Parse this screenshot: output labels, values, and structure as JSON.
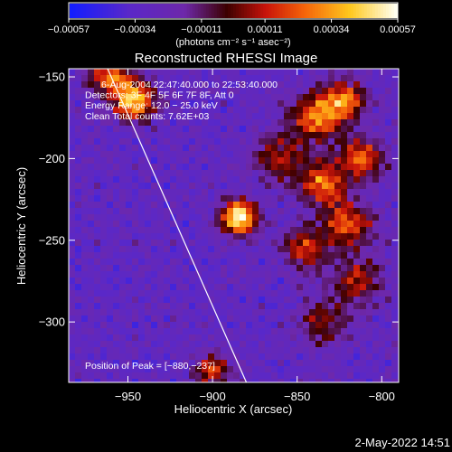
{
  "chart_data": {
    "type": "heatmap",
    "title": "Reconstructed RHESSI Image",
    "xlabel": "Heliocentric X (arcsec)",
    "ylabel": "Heliocentric Y (arcsec)",
    "xlim": [
      -985,
      -790
    ],
    "ylim": [
      -337,
      -145
    ],
    "x_ticks": [
      -950,
      -900,
      -850,
      -800
    ],
    "y_ticks": [
      -150,
      -200,
      -250,
      -300
    ],
    "x_tick_labels": [
      "−950",
      "−900",
      "−850",
      "−800"
    ],
    "y_tick_labels": [
      "−150",
      "−200",
      "−250",
      "−300"
    ],
    "colorbar": {
      "ticks": [
        -0.00057,
        -0.00034,
        -0.00011,
        0.00011,
        0.00034,
        0.00057
      ],
      "tick_labels": [
        "−0.00057",
        "−0.00034",
        "−0.00011",
        "0.00011",
        "0.00034",
        "0.00057"
      ],
      "unit_label": "(photons cm⁻² s⁻¹ asec⁻²)"
    },
    "annotations": [
      "6‑Aug‑2004 22:47:40.000 to 22:53:40.000",
      "Detectors: 3F 4F 5F 6F 7F 8F, Att 0",
      "Energy Range: 12.0 − 25.0 keV",
      "Clean    Total counts: 7.62E+03"
    ],
    "peak_label": "Position of Peak = [−880,−237]",
    "peak_position": [
      -880,
      -237
    ],
    "sources": [
      {
        "x": -884,
        "y": -236,
        "amp": 1.0,
        "sigma": 7
      },
      {
        "x": -946,
        "y": -165,
        "amp": 0.78,
        "sigma": 8
      },
      {
        "x": -960,
        "y": -150,
        "amp": 0.55,
        "sigma": 9
      },
      {
        "x": -840,
        "y": -175,
        "amp": 0.6,
        "sigma": 10
      },
      {
        "x": -823,
        "y": -165,
        "amp": 0.6,
        "sigma": 9
      },
      {
        "x": -835,
        "y": -215,
        "amp": 0.62,
        "sigma": 9
      },
      {
        "x": -820,
        "y": -240,
        "amp": 0.55,
        "sigma": 10
      },
      {
        "x": -845,
        "y": -255,
        "amp": 0.5,
        "sigma": 9
      },
      {
        "x": -812,
        "y": -200,
        "amp": 0.55,
        "sigma": 9
      },
      {
        "x": -815,
        "y": -275,
        "amp": 0.42,
        "sigma": 10
      },
      {
        "x": -860,
        "y": -200,
        "amp": 0.4,
        "sigma": 10
      },
      {
        "x": -900,
        "y": -330,
        "amp": 0.5,
        "sigma": 7
      },
      {
        "x": -835,
        "y": -300,
        "amp": 0.35,
        "sigma": 10
      }
    ],
    "limb_line": [
      [
        -962,
        -145
      ],
      [
        -880,
        -337
      ]
    ]
  },
  "footer": {
    "timestamp": "2‑May‑2022 14:51"
  },
  "colors": {
    "background": "#000000",
    "limb_line": "#ffffff",
    "text": "#ffffff"
  }
}
